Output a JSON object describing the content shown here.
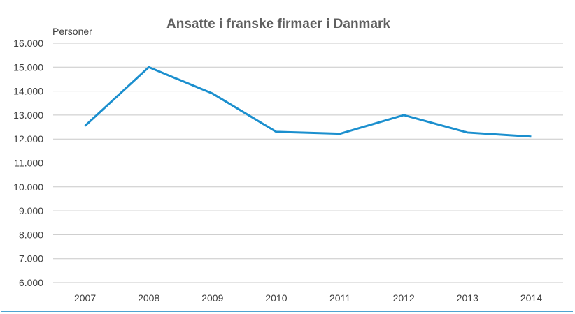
{
  "chart_data": {
    "type": "line",
    "title": "Ansatte i franske firmaer i Danmark",
    "ylabel": "Personer",
    "xlabel": "",
    "categories": [
      "2007",
      "2008",
      "2009",
      "2010",
      "2011",
      "2012",
      "2013",
      "2014"
    ],
    "y_tick_labels": [
      "6.000",
      "7.000",
      "8.000",
      "9.000",
      "10.000",
      "11.000",
      "12.000",
      "13.000",
      "14.000",
      "15.000",
      "16.000"
    ],
    "ylim": [
      6000,
      16000
    ],
    "series": [
      {
        "values": [
          12550,
          15000,
          13900,
          12300,
          12220,
          13000,
          12270,
          12100
        ]
      }
    ],
    "grid": true,
    "legend": "none",
    "colors": {
      "line": "#1b8fce",
      "grid": "#c8c8c8",
      "border": "#4fa3d1",
      "title": "#5f5f5f",
      "text": "#404040"
    }
  }
}
